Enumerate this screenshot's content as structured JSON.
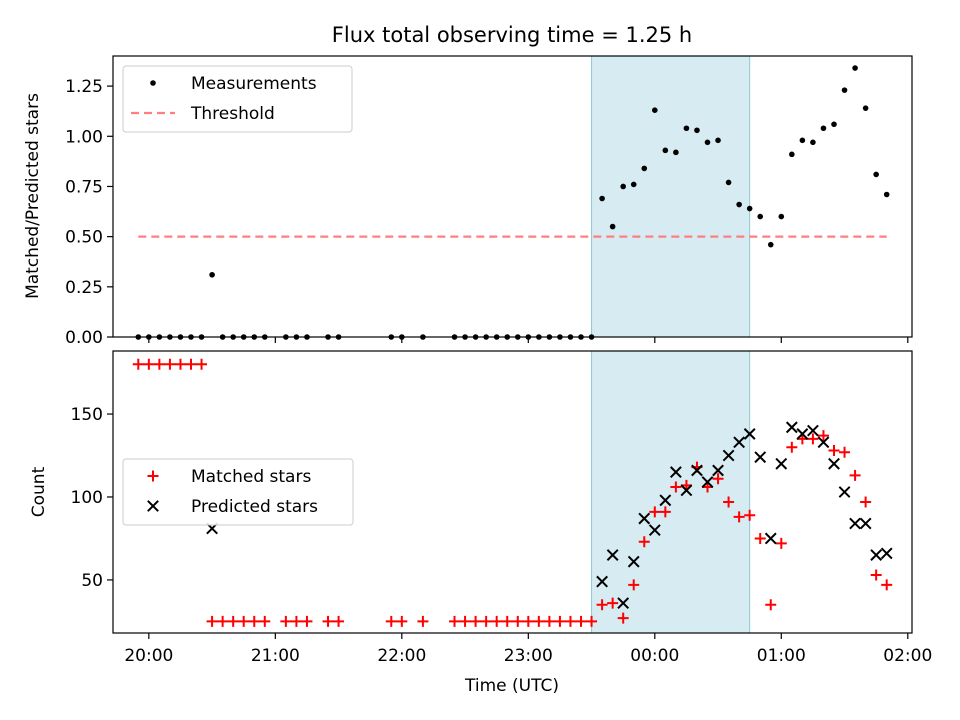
{
  "chart_data": [
    {
      "type": "scatter",
      "title": "Flux total observing time = 1.25 h",
      "ylabel": "Matched/Predicted stars",
      "xlabel": "",
      "xlim": [
        "19:43",
        "02:02"
      ],
      "ylim": [
        0,
        1.4
      ],
      "yticks": [
        "0.00",
        "0.25",
        "0.50",
        "0.75",
        "1.00",
        "1.25"
      ],
      "legend_position": "upper-left",
      "highlight_span": [
        "23:30",
        "00:45"
      ],
      "series": [
        {
          "name": "Measurements",
          "marker": "dot",
          "color": "#000000",
          "points": [
            [
              "19:55",
              0.0
            ],
            [
              "20:00",
              0.0
            ],
            [
              "20:05",
              0.0
            ],
            [
              "20:10",
              0.0
            ],
            [
              "20:15",
              0.0
            ],
            [
              "20:20",
              0.0
            ],
            [
              "20:25",
              0.0
            ],
            [
              "20:30",
              0.31
            ],
            [
              "20:35",
              0.0
            ],
            [
              "20:40",
              0.0
            ],
            [
              "20:45",
              0.0
            ],
            [
              "20:50",
              0.0
            ],
            [
              "20:55",
              0.0
            ],
            [
              "21:05",
              0.0
            ],
            [
              "21:10",
              0.0
            ],
            [
              "21:15",
              0.0
            ],
            [
              "21:25",
              0.0
            ],
            [
              "21:30",
              0.0
            ],
            [
              "21:55",
              0.0
            ],
            [
              "22:00",
              0.0
            ],
            [
              "22:10",
              0.0
            ],
            [
              "22:25",
              0.0
            ],
            [
              "22:30",
              0.0
            ],
            [
              "22:35",
              0.0
            ],
            [
              "22:40",
              0.0
            ],
            [
              "22:45",
              0.0
            ],
            [
              "22:50",
              0.0
            ],
            [
              "22:55",
              0.0
            ],
            [
              "23:00",
              0.0
            ],
            [
              "23:05",
              0.0
            ],
            [
              "23:10",
              0.0
            ],
            [
              "23:15",
              0.0
            ],
            [
              "23:20",
              0.0
            ],
            [
              "23:25",
              0.0
            ],
            [
              "23:30",
              0.0
            ],
            [
              "23:35",
              0.69
            ],
            [
              "23:40",
              0.55
            ],
            [
              "23:45",
              0.75
            ],
            [
              "23:50",
              0.76
            ],
            [
              "23:55",
              0.84
            ],
            [
              "00:00",
              1.13
            ],
            [
              "00:05",
              0.93
            ],
            [
              "00:10",
              0.92
            ],
            [
              "00:15",
              1.04
            ],
            [
              "00:20",
              1.03
            ],
            [
              "00:25",
              0.97
            ],
            [
              "00:30",
              0.98
            ],
            [
              "00:35",
              0.77
            ],
            [
              "00:40",
              0.66
            ],
            [
              "00:45",
              0.64
            ],
            [
              "00:50",
              0.6
            ],
            [
              "00:55",
              0.46
            ],
            [
              "01:00",
              0.6
            ],
            [
              "01:05",
              0.91
            ],
            [
              "01:10",
              0.98
            ],
            [
              "01:15",
              0.97
            ],
            [
              "01:20",
              1.04
            ],
            [
              "01:25",
              1.06
            ],
            [
              "01:30",
              1.23
            ],
            [
              "01:35",
              1.34
            ],
            [
              "01:40",
              1.14
            ],
            [
              "01:45",
              0.81
            ],
            [
              "01:50",
              0.71
            ]
          ]
        },
        {
          "name": "Threshold",
          "marker": "dashed-line",
          "color": "#ff7f7f",
          "points": [
            [
              "19:55",
              0.5
            ],
            [
              "01:50",
              0.5
            ]
          ]
        }
      ]
    },
    {
      "type": "scatter",
      "title": "",
      "ylabel": "Count",
      "xlabel": "Time (UTC)",
      "xlim": [
        "19:43",
        "02:02"
      ],
      "ylim": [
        18,
        188
      ],
      "yticks": [
        "50",
        "100",
        "150"
      ],
      "xticks": [
        "20:00",
        "21:00",
        "22:00",
        "23:00",
        "00:00",
        "01:00",
        "02:00"
      ],
      "legend_position": "center-left",
      "highlight_span": [
        "23:30",
        "00:45"
      ],
      "series": [
        {
          "name": "Matched stars",
          "marker": "plus",
          "color": "#ff0000",
          "points": [
            [
              "19:55",
              180
            ],
            [
              "20:00",
              180
            ],
            [
              "20:05",
              180
            ],
            [
              "20:10",
              180
            ],
            [
              "20:15",
              180
            ],
            [
              "20:20",
              180
            ],
            [
              "20:25",
              180
            ],
            [
              "20:30",
              25
            ],
            [
              "20:35",
              25
            ],
            [
              "20:40",
              25
            ],
            [
              "20:45",
              25
            ],
            [
              "20:50",
              25
            ],
            [
              "20:55",
              25
            ],
            [
              "21:05",
              25
            ],
            [
              "21:10",
              25
            ],
            [
              "21:15",
              25
            ],
            [
              "21:25",
              25
            ],
            [
              "21:30",
              25
            ],
            [
              "21:55",
              25
            ],
            [
              "22:00",
              25
            ],
            [
              "22:10",
              25
            ],
            [
              "22:25",
              25
            ],
            [
              "22:30",
              25
            ],
            [
              "22:35",
              25
            ],
            [
              "22:40",
              25
            ],
            [
              "22:45",
              25
            ],
            [
              "22:50",
              25
            ],
            [
              "22:55",
              25
            ],
            [
              "23:00",
              25
            ],
            [
              "23:05",
              25
            ],
            [
              "23:10",
              25
            ],
            [
              "23:15",
              25
            ],
            [
              "23:20",
              25
            ],
            [
              "23:25",
              25
            ],
            [
              "23:30",
              25
            ],
            [
              "23:35",
              35
            ],
            [
              "23:40",
              36
            ],
            [
              "23:45",
              27
            ],
            [
              "23:50",
              47
            ],
            [
              "23:55",
              73
            ],
            [
              "00:00",
              91
            ],
            [
              "00:05",
              91
            ],
            [
              "00:10",
              106
            ],
            [
              "00:15",
              107
            ],
            [
              "00:20",
              118
            ],
            [
              "00:25",
              106
            ],
            [
              "00:30",
              111
            ],
            [
              "00:35",
              97
            ],
            [
              "00:40",
              88
            ],
            [
              "00:45",
              89
            ],
            [
              "00:50",
              75
            ],
            [
              "00:55",
              35
            ],
            [
              "01:00",
              72
            ],
            [
              "01:05",
              130
            ],
            [
              "01:10",
              135
            ],
            [
              "01:15",
              135
            ],
            [
              "01:20",
              137
            ],
            [
              "01:25",
              128
            ],
            [
              "01:30",
              127
            ],
            [
              "01:35",
              113
            ],
            [
              "01:40",
              97
            ],
            [
              "01:45",
              53
            ],
            [
              "01:50",
              47
            ]
          ]
        },
        {
          "name": "Predicted stars",
          "marker": "x",
          "color": "#000000",
          "points": [
            [
              "20:30",
              81
            ],
            [
              "23:35",
              49
            ],
            [
              "23:40",
              65
            ],
            [
              "23:45",
              36
            ],
            [
              "23:50",
              61
            ],
            [
              "23:55",
              87
            ],
            [
              "00:00",
              80
            ],
            [
              "00:05",
              98
            ],
            [
              "00:10",
              115
            ],
            [
              "00:15",
              104
            ],
            [
              "00:20",
              116
            ],
            [
              "00:25",
              109
            ],
            [
              "00:30",
              116
            ],
            [
              "00:35",
              125
            ],
            [
              "00:40",
              133
            ],
            [
              "00:45",
              138
            ],
            [
              "00:50",
              124
            ],
            [
              "00:55",
              75
            ],
            [
              "01:00",
              120
            ],
            [
              "01:05",
              142
            ],
            [
              "01:10",
              138
            ],
            [
              "01:15",
              140
            ],
            [
              "01:20",
              133
            ],
            [
              "01:25",
              120
            ],
            [
              "01:30",
              103
            ],
            [
              "01:35",
              84
            ],
            [
              "01:40",
              84
            ],
            [
              "01:45",
              65
            ],
            [
              "01:50",
              66
            ]
          ]
        }
      ]
    }
  ]
}
